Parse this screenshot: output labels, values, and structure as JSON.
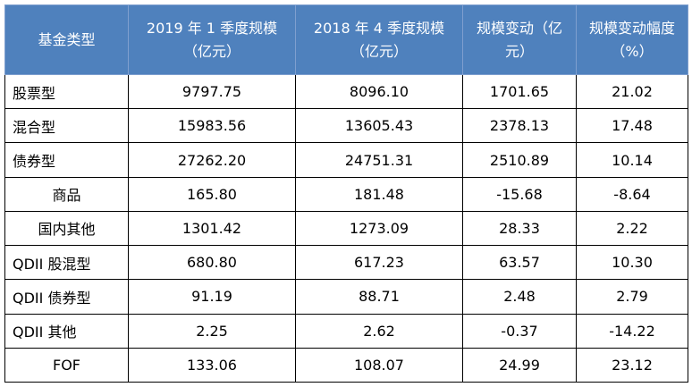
{
  "table": {
    "headers": [
      "基金类型",
      "2019 年 1 季度规模（亿元）",
      "2018 年 4 季度规模（亿元）",
      "规模变动（亿元）",
      "规模变动幅度（%）"
    ],
    "rows": [
      [
        "股票型",
        "9797.75",
        "8096.10",
        "1701.65",
        "21.02"
      ],
      [
        "混合型",
        "15983.56",
        "13605.43",
        "2378.13",
        "17.48"
      ],
      [
        "债券型",
        "27262.20",
        "24751.31",
        "2510.89",
        "10.14"
      ],
      [
        "商品",
        "165.80",
        "181.48",
        "-15.68",
        "-8.64"
      ],
      [
        "国内其他",
        "1301.42",
        "1273.09",
        "28.33",
        "2.22"
      ],
      [
        "QDII 股混型",
        "680.80",
        "617.23",
        "63.57",
        "10.30"
      ],
      [
        "QDII 债券型",
        "91.19",
        "88.71",
        "2.48",
        "2.79"
      ],
      [
        "QDII 其他",
        "2.25",
        "2.62",
        "-0.37",
        "-14.22"
      ],
      [
        "FOF",
        "133.06",
        "108.07",
        "24.99",
        "23.12"
      ]
    ]
  },
  "colors": {
    "header_bg": "#4f81bd",
    "header_text": "#ffffff",
    "border": "#000000"
  }
}
